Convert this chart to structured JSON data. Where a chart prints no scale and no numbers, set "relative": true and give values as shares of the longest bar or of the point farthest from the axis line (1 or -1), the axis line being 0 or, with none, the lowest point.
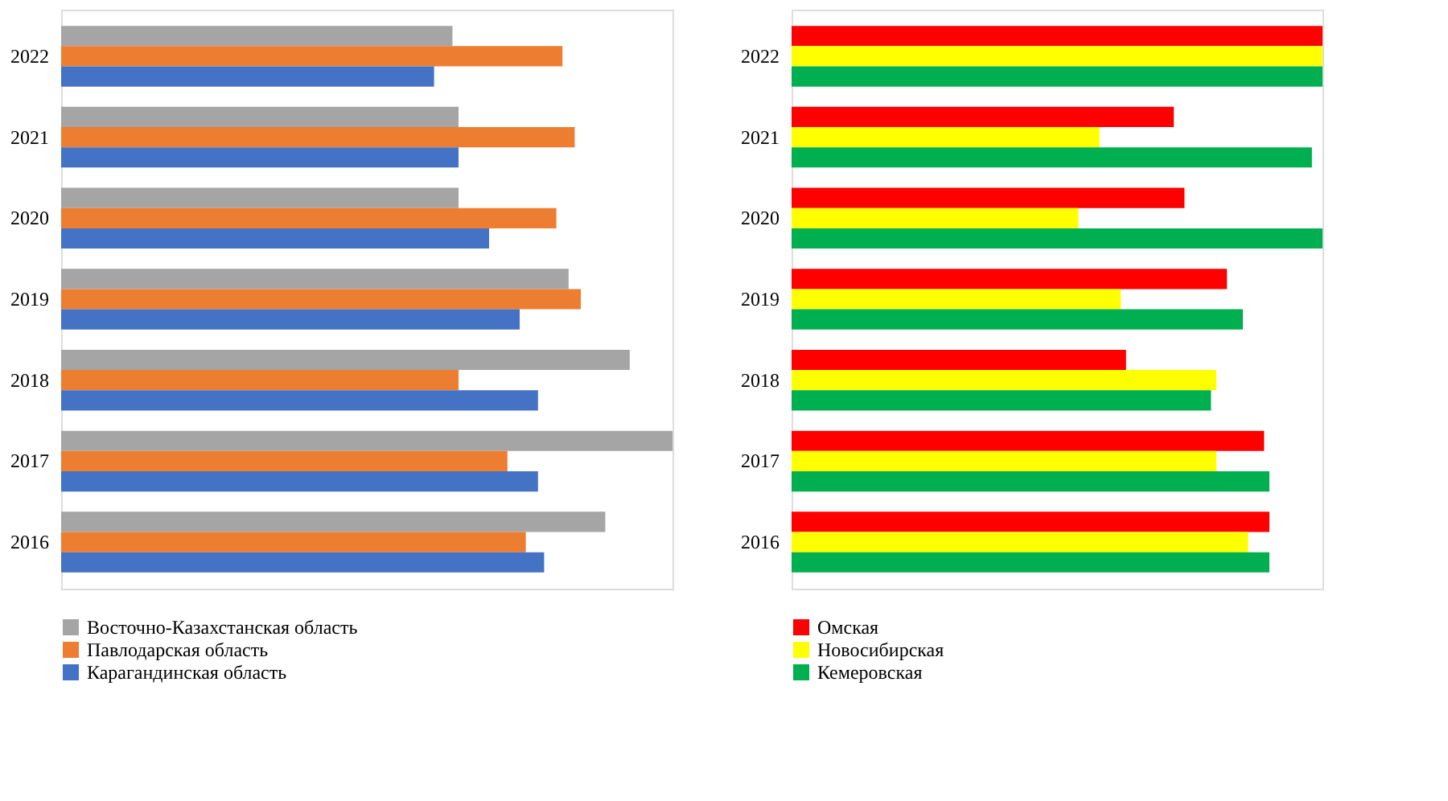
{
  "chart_data": [
    {
      "type": "bar",
      "orientation": "horizontal",
      "relative": true,
      "legend": "bottom",
      "categories": [
        "2022",
        "2021",
        "2020",
        "2019",
        "2018",
        "2017",
        "2016"
      ],
      "series": [
        {
          "name": "Восточно-Казахстанская область",
          "color": "#a5a5a5",
          "values": [
            0.64,
            0.65,
            0.65,
            0.83,
            0.93,
            1,
            0.89
          ]
        },
        {
          "name": "Павлодарская область",
          "color": "#ed7d31",
          "values": [
            0.82,
            0.84,
            0.81,
            0.85,
            0.65,
            0.73,
            0.76
          ]
        },
        {
          "name": "Карагандинская область",
          "color": "#4472c4",
          "values": [
            0.61,
            0.65,
            0.7,
            0.75,
            0.78,
            0.78,
            0.79
          ]
        }
      ]
    },
    {
      "type": "bar",
      "orientation": "horizontal",
      "relative": true,
      "legend": "bottom",
      "categories": [
        "2022",
        "2021",
        "2020",
        "2019",
        "2018",
        "2017",
        "2016"
      ],
      "series": [
        {
          "name": "Омская",
          "color": "#ff0000",
          "values": [
            1,
            0.72,
            0.74,
            0.82,
            0.63,
            0.89,
            0.9
          ]
        },
        {
          "name": "Новосибирская",
          "color": "#ffff00",
          "values": [
            1,
            0.58,
            0.54,
            0.62,
            0.8,
            0.8,
            0.86
          ]
        },
        {
          "name": "Кемеровская",
          "color": "#00b050",
          "values": [
            1,
            0.98,
            1,
            0.85,
            0.79,
            0.9,
            0.9
          ]
        }
      ]
    }
  ]
}
